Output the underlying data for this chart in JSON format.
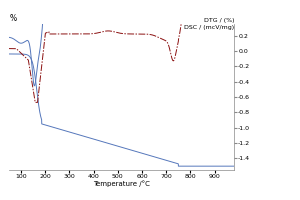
{
  "xlabel": "Temperature /°C",
  "xlim": [
    50,
    980
  ],
  "ylim": [
    -1.55,
    0.35
  ],
  "right_ticks": [
    0.2,
    0.0,
    -0.2,
    -0.4,
    -0.6,
    -0.8,
    -1.0,
    -1.2,
    -1.4
  ],
  "xticks": [
    100,
    200,
    300,
    400,
    500,
    600,
    700,
    800,
    900
  ],
  "background_color": "#ffffff",
  "line_blue_color": "#5577bb",
  "line_red_color": "#8b1010",
  "right_label_1": "DTG / (%)",
  "right_label_2": "DSC / (mcV/mg)",
  "left_label": "%"
}
